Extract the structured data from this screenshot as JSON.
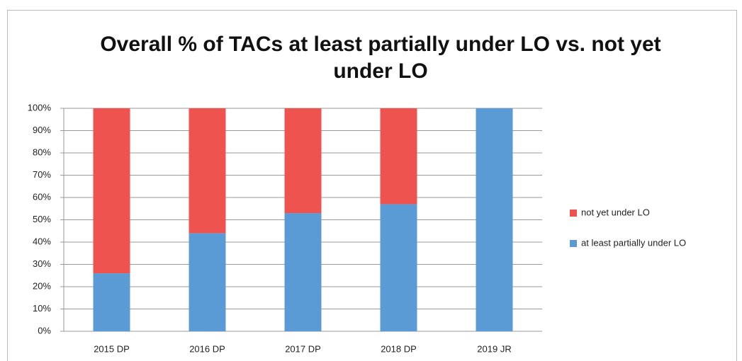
{
  "chart_data": {
    "type": "stacked-bar",
    "title": "Overall % of TACs at least partially under LO vs. not yet under LO",
    "categories": [
      "2015 DP",
      "2016 DP",
      "2017 DP",
      "2018 DP",
      "2019 JR"
    ],
    "series": [
      {
        "name": "at least partially under LO",
        "color": "#5b9bd5",
        "values": [
          26,
          44,
          53,
          57,
          100
        ]
      },
      {
        "name": "not yet under LO",
        "color": "#ef5350",
        "values": [
          74,
          56,
          47,
          43,
          0
        ]
      }
    ],
    "ylim": [
      0,
      100
    ],
    "yticks": [
      {
        "value": 0,
        "label": "0%"
      },
      {
        "value": 10,
        "label": "10%"
      },
      {
        "value": 20,
        "label": "20%"
      },
      {
        "value": 30,
        "label": "30%"
      },
      {
        "value": 40,
        "label": "40%"
      },
      {
        "value": 50,
        "label": "50%"
      },
      {
        "value": 60,
        "label": "60%"
      },
      {
        "value": 70,
        "label": "70%"
      },
      {
        "value": 80,
        "label": "80%"
      },
      {
        "value": 90,
        "label": "90%"
      },
      {
        "value": 100,
        "label": "100%"
      }
    ],
    "grid": true
  }
}
